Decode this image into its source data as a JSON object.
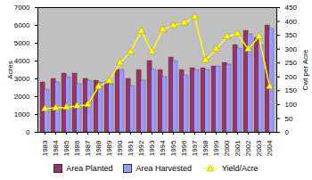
{
  "chart_data": {
    "type": "bar",
    "categories": [
      "1983",
      "1984",
      "1985",
      "1986",
      "1987",
      "1988",
      "1989",
      "1990",
      "1991",
      "1992",
      "1993",
      "1994",
      "1995",
      "1996",
      "1997",
      "1998",
      "1999",
      "2000",
      "2001",
      "2002",
      "2003",
      "2004"
    ],
    "series": [
      {
        "name": "Area Planted",
        "color": "#993366",
        "values": [
          2800,
          3000,
          3300,
          3300,
          3000,
          2900,
          2800,
          3500,
          3000,
          3500,
          4000,
          3500,
          4200,
          3500,
          3600,
          3600,
          3700,
          3900,
          4900,
          5700,
          5300,
          6000
        ]
      },
      {
        "name": "Area Harvested",
        "color": "#9999ff",
        "values": [
          2400,
          2800,
          3100,
          2700,
          2900,
          2800,
          2700,
          3500,
          2600,
          2900,
          3500,
          3100,
          4000,
          3200,
          3500,
          3500,
          3700,
          3800,
          4700,
          5500,
          4900,
          5800
        ]
      },
      {
        "name": "Yield/Acre",
        "color": "#ffff00",
        "type": "line",
        "marker": "triangle",
        "axis": "y2",
        "values": [
          85,
          88,
          90,
          95,
          100,
          165,
          185,
          250,
          290,
          365,
          290,
          370,
          385,
          395,
          415,
          260,
          300,
          345,
          355,
          300,
          345,
          165
        ]
      }
    ],
    "ylabel": "Acres",
    "y2label": "Cwt per Acre",
    "ylim": [
      0,
      7000
    ],
    "yticks": [
      0,
      1000,
      2000,
      3000,
      4000,
      5000,
      6000,
      7000
    ],
    "y2lim": [
      0,
      450
    ],
    "y2ticks": [
      0,
      50,
      100,
      150,
      200,
      250,
      300,
      350,
      400,
      450
    ],
    "grid": false,
    "legend": "bottom"
  }
}
